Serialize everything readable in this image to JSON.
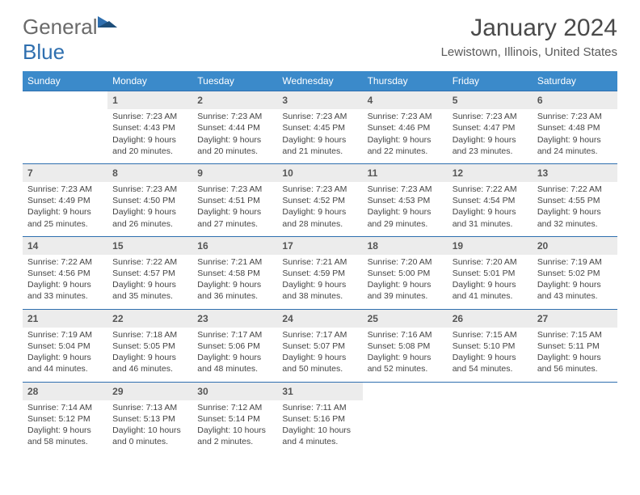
{
  "logo": {
    "part1": "General",
    "part2": "Blue"
  },
  "title": "January 2024",
  "location": "Lewistown, Illinois, United States",
  "headers": [
    "Sunday",
    "Monday",
    "Tuesday",
    "Wednesday",
    "Thursday",
    "Friday",
    "Saturday"
  ],
  "colors": {
    "header_bg": "#3b8aca",
    "header_text": "#ffffff",
    "rule": "#2f6faf",
    "daynum_bg": "#ececec",
    "logo_gray": "#6a6a6a",
    "logo_blue": "#2f6faf",
    "body_text": "#444444"
  },
  "weeks": [
    [
      null,
      {
        "n": "1",
        "sr": "Sunrise: 7:23 AM",
        "ss": "Sunset: 4:43 PM",
        "dl": "Daylight: 9 hours and 20 minutes."
      },
      {
        "n": "2",
        "sr": "Sunrise: 7:23 AM",
        "ss": "Sunset: 4:44 PM",
        "dl": "Daylight: 9 hours and 20 minutes."
      },
      {
        "n": "3",
        "sr": "Sunrise: 7:23 AM",
        "ss": "Sunset: 4:45 PM",
        "dl": "Daylight: 9 hours and 21 minutes."
      },
      {
        "n": "4",
        "sr": "Sunrise: 7:23 AM",
        "ss": "Sunset: 4:46 PM",
        "dl": "Daylight: 9 hours and 22 minutes."
      },
      {
        "n": "5",
        "sr": "Sunrise: 7:23 AM",
        "ss": "Sunset: 4:47 PM",
        "dl": "Daylight: 9 hours and 23 minutes."
      },
      {
        "n": "6",
        "sr": "Sunrise: 7:23 AM",
        "ss": "Sunset: 4:48 PM",
        "dl": "Daylight: 9 hours and 24 minutes."
      }
    ],
    [
      {
        "n": "7",
        "sr": "Sunrise: 7:23 AM",
        "ss": "Sunset: 4:49 PM",
        "dl": "Daylight: 9 hours and 25 minutes."
      },
      {
        "n": "8",
        "sr": "Sunrise: 7:23 AM",
        "ss": "Sunset: 4:50 PM",
        "dl": "Daylight: 9 hours and 26 minutes."
      },
      {
        "n": "9",
        "sr": "Sunrise: 7:23 AM",
        "ss": "Sunset: 4:51 PM",
        "dl": "Daylight: 9 hours and 27 minutes."
      },
      {
        "n": "10",
        "sr": "Sunrise: 7:23 AM",
        "ss": "Sunset: 4:52 PM",
        "dl": "Daylight: 9 hours and 28 minutes."
      },
      {
        "n": "11",
        "sr": "Sunrise: 7:23 AM",
        "ss": "Sunset: 4:53 PM",
        "dl": "Daylight: 9 hours and 29 minutes."
      },
      {
        "n": "12",
        "sr": "Sunrise: 7:22 AM",
        "ss": "Sunset: 4:54 PM",
        "dl": "Daylight: 9 hours and 31 minutes."
      },
      {
        "n": "13",
        "sr": "Sunrise: 7:22 AM",
        "ss": "Sunset: 4:55 PM",
        "dl": "Daylight: 9 hours and 32 minutes."
      }
    ],
    [
      {
        "n": "14",
        "sr": "Sunrise: 7:22 AM",
        "ss": "Sunset: 4:56 PM",
        "dl": "Daylight: 9 hours and 33 minutes."
      },
      {
        "n": "15",
        "sr": "Sunrise: 7:22 AM",
        "ss": "Sunset: 4:57 PM",
        "dl": "Daylight: 9 hours and 35 minutes."
      },
      {
        "n": "16",
        "sr": "Sunrise: 7:21 AM",
        "ss": "Sunset: 4:58 PM",
        "dl": "Daylight: 9 hours and 36 minutes."
      },
      {
        "n": "17",
        "sr": "Sunrise: 7:21 AM",
        "ss": "Sunset: 4:59 PM",
        "dl": "Daylight: 9 hours and 38 minutes."
      },
      {
        "n": "18",
        "sr": "Sunrise: 7:20 AM",
        "ss": "Sunset: 5:00 PM",
        "dl": "Daylight: 9 hours and 39 minutes."
      },
      {
        "n": "19",
        "sr": "Sunrise: 7:20 AM",
        "ss": "Sunset: 5:01 PM",
        "dl": "Daylight: 9 hours and 41 minutes."
      },
      {
        "n": "20",
        "sr": "Sunrise: 7:19 AM",
        "ss": "Sunset: 5:02 PM",
        "dl": "Daylight: 9 hours and 43 minutes."
      }
    ],
    [
      {
        "n": "21",
        "sr": "Sunrise: 7:19 AM",
        "ss": "Sunset: 5:04 PM",
        "dl": "Daylight: 9 hours and 44 minutes."
      },
      {
        "n": "22",
        "sr": "Sunrise: 7:18 AM",
        "ss": "Sunset: 5:05 PM",
        "dl": "Daylight: 9 hours and 46 minutes."
      },
      {
        "n": "23",
        "sr": "Sunrise: 7:17 AM",
        "ss": "Sunset: 5:06 PM",
        "dl": "Daylight: 9 hours and 48 minutes."
      },
      {
        "n": "24",
        "sr": "Sunrise: 7:17 AM",
        "ss": "Sunset: 5:07 PM",
        "dl": "Daylight: 9 hours and 50 minutes."
      },
      {
        "n": "25",
        "sr": "Sunrise: 7:16 AM",
        "ss": "Sunset: 5:08 PM",
        "dl": "Daylight: 9 hours and 52 minutes."
      },
      {
        "n": "26",
        "sr": "Sunrise: 7:15 AM",
        "ss": "Sunset: 5:10 PM",
        "dl": "Daylight: 9 hours and 54 minutes."
      },
      {
        "n": "27",
        "sr": "Sunrise: 7:15 AM",
        "ss": "Sunset: 5:11 PM",
        "dl": "Daylight: 9 hours and 56 minutes."
      }
    ],
    [
      {
        "n": "28",
        "sr": "Sunrise: 7:14 AM",
        "ss": "Sunset: 5:12 PM",
        "dl": "Daylight: 9 hours and 58 minutes."
      },
      {
        "n": "29",
        "sr": "Sunrise: 7:13 AM",
        "ss": "Sunset: 5:13 PM",
        "dl": "Daylight: 10 hours and 0 minutes."
      },
      {
        "n": "30",
        "sr": "Sunrise: 7:12 AM",
        "ss": "Sunset: 5:14 PM",
        "dl": "Daylight: 10 hours and 2 minutes."
      },
      {
        "n": "31",
        "sr": "Sunrise: 7:11 AM",
        "ss": "Sunset: 5:16 PM",
        "dl": "Daylight: 10 hours and 4 minutes."
      },
      null,
      null,
      null
    ]
  ]
}
